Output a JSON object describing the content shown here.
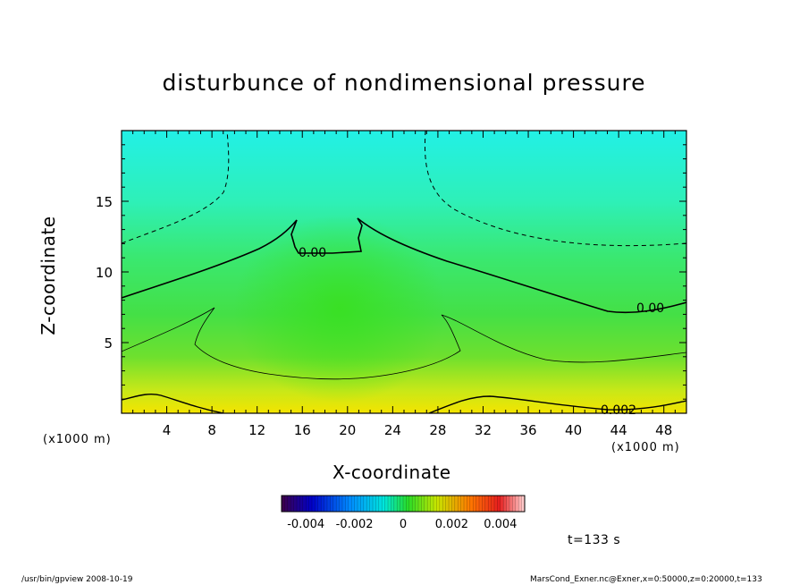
{
  "chart_data": {
    "type": "heatmap",
    "title": "disturbunce of nondimensional pressure",
    "xlabel": "X-coordinate",
    "ylabel": "Z-coordinate",
    "x_unit_label": "(x1000 m)",
    "xlim": [
      0,
      50
    ],
    "ylim": [
      0,
      20
    ],
    "x_ticks": [
      "4",
      "8",
      "12",
      "16",
      "20",
      "24",
      "28",
      "32",
      "36",
      "40",
      "44",
      "48"
    ],
    "y_ticks": [
      "5",
      "10",
      "15"
    ],
    "contour_labels": [
      "0.00",
      "0.00",
      "0.002"
    ],
    "colorbar": {
      "range": [
        -0.005,
        0.005
      ],
      "tick_labels": [
        "-0.004",
        "-0.002",
        "0",
        "0.002",
        "0.004"
      ]
    },
    "time_label": "t=133 s"
  },
  "footer": {
    "left": "/usr/bin/gpview  2008-10-19",
    "right": "MarsCond_Exner.nc@Exner,x=0:50000,z=0:20000,t=133"
  },
  "colors": {
    "top_cyan": "#20f0e0",
    "mid_green": "#3ce23a",
    "bottom_yellow": "#f0e800"
  }
}
